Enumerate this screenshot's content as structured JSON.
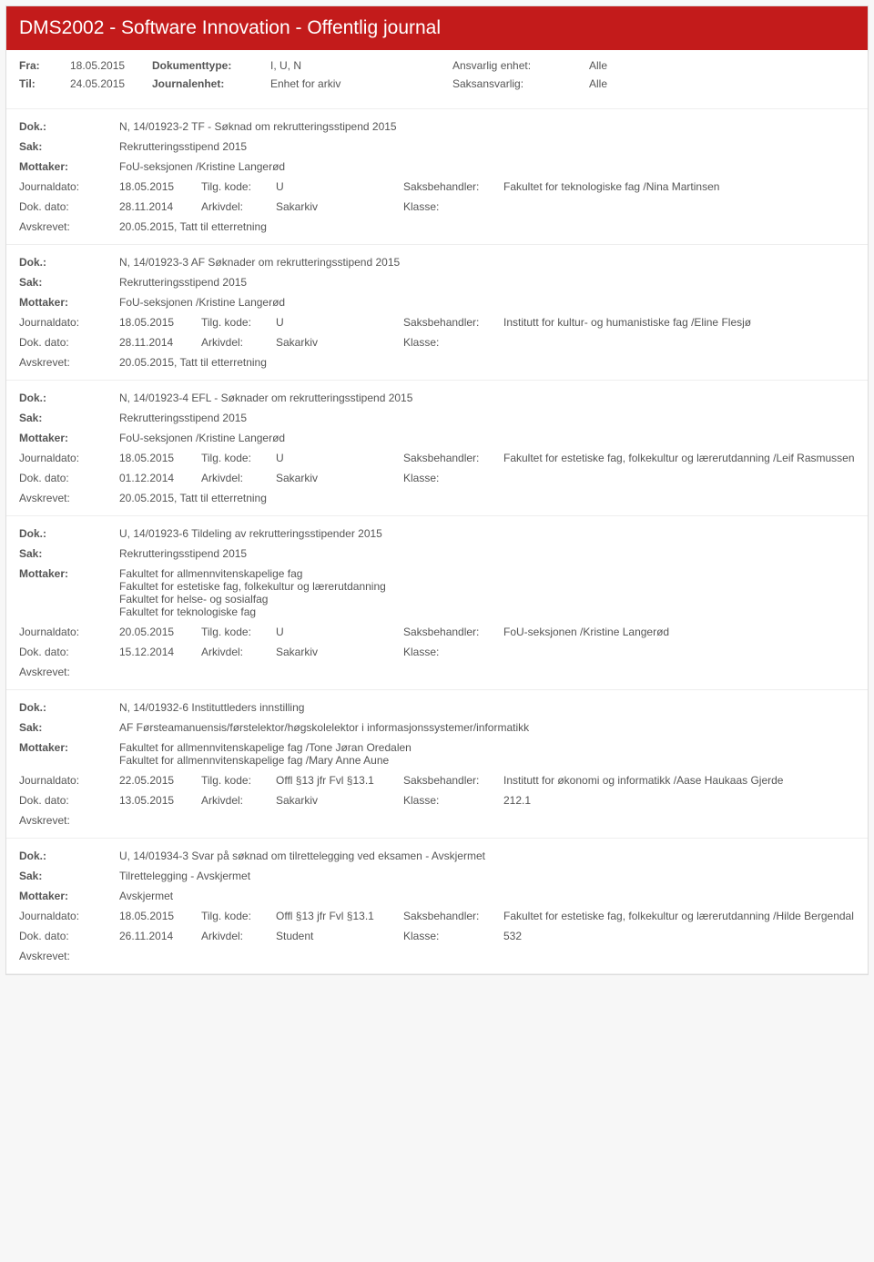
{
  "header": {
    "title": "DMS2002 - Software Innovation - Offentlig journal"
  },
  "filters": {
    "fra_label": "Fra:",
    "fra_value": "18.05.2015",
    "til_label": "Til:",
    "til_value": "24.05.2015",
    "doktype_label": "Dokumenttype:",
    "doktype_value": "I, U, N",
    "journalenhet_label": "Journalenhet:",
    "journalenhet_value": "Enhet for arkiv",
    "ansvarlig_label": "Ansvarlig enhet:",
    "ansvarlig_value": "Alle",
    "saks_label": "Saksansvarlig:",
    "saks_value": "Alle"
  },
  "labels": {
    "dok": "Dok.:",
    "sak": "Sak:",
    "mottaker": "Mottaker:",
    "journaldato": "Journaldato:",
    "tilgkode": "Tilg. kode:",
    "saksbehandler": "Saksbehandler:",
    "dokdato": "Dok. dato:",
    "arkivdel": "Arkivdel:",
    "klasse": "Klasse:",
    "avskrevet": "Avskrevet:"
  },
  "entries": [
    {
      "dok": "N, 14/01923-2 TF - Søknad om rekrutteringsstipend 2015",
      "sak": "Rekrutteringsstipend 2015",
      "mottaker": "FoU-seksjonen /Kristine Langerød",
      "journaldato": "18.05.2015",
      "tilgkode": "U",
      "saksbehandler": "Fakultet for teknologiske fag /Nina Martinsen",
      "dokdato": "28.11.2014",
      "arkivdel": "Sakarkiv",
      "klasse": "",
      "avskrevet": "20.05.2015, Tatt til etterretning"
    },
    {
      "dok": "N, 14/01923-3 AF Søknader om rekrutteringsstipend 2015",
      "sak": "Rekrutteringsstipend 2015",
      "mottaker": "FoU-seksjonen /Kristine Langerød",
      "journaldato": "18.05.2015",
      "tilgkode": "U",
      "saksbehandler": "Institutt for kultur- og humanistiske fag /Eline Flesjø",
      "dokdato": "28.11.2014",
      "arkivdel": "Sakarkiv",
      "klasse": "",
      "avskrevet": "20.05.2015, Tatt til etterretning"
    },
    {
      "dok": "N, 14/01923-4 EFL - Søknader om rekrutteringsstipend 2015",
      "sak": "Rekrutteringsstipend 2015",
      "mottaker": "FoU-seksjonen /Kristine Langerød",
      "journaldato": "18.05.2015",
      "tilgkode": "U",
      "saksbehandler": "Fakultet for estetiske fag, folkekultur og lærerutdanning /Leif Rasmussen",
      "dokdato": "01.12.2014",
      "arkivdel": "Sakarkiv",
      "klasse": "",
      "avskrevet": "20.05.2015, Tatt til etterretning"
    },
    {
      "dok": "U, 14/01923-6 Tildeling av rekrutteringsstipender 2015",
      "sak": "Rekrutteringsstipend 2015",
      "mottaker": "Fakultet for allmennvitenskapelige fag\nFakultet for estetiske fag, folkekultur og lærerutdanning\nFakultet for helse- og sosialfag\nFakultet for teknologiske fag",
      "journaldato": "20.05.2015",
      "tilgkode": "U",
      "saksbehandler": "FoU-seksjonen /Kristine Langerød",
      "dokdato": "15.12.2014",
      "arkivdel": "Sakarkiv",
      "klasse": "",
      "avskrevet": ""
    },
    {
      "dok": "N, 14/01932-6 Instituttleders innstilling",
      "sak": "AF Førsteamanuensis/førstelektor/høgskolelektor i informasjonssystemer/informatikk",
      "mottaker": "Fakultet for allmennvitenskapelige fag /Tone Jøran Oredalen\nFakultet for allmennvitenskapelige fag /Mary Anne Aune",
      "journaldato": "22.05.2015",
      "tilgkode": "Offl §13 jfr Fvl §13.1",
      "saksbehandler": "Institutt for økonomi og informatikk /Aase Haukaas Gjerde",
      "dokdato": "13.05.2015",
      "arkivdel": "Sakarkiv",
      "klasse": "212.1",
      "avskrevet": ""
    },
    {
      "dok": "U, 14/01934-3 Svar på søknad om tilrettelegging ved eksamen - Avskjermet",
      "sak": "Tilrettelegging - Avskjermet",
      "mottaker": "Avskjermet",
      "journaldato": "18.05.2015",
      "tilgkode": "Offl §13 jfr Fvl §13.1",
      "saksbehandler": "Fakultet for estetiske fag, folkekultur og lærerutdanning /Hilde Bergendal",
      "dokdato": "26.11.2014",
      "arkivdel": "Student",
      "klasse": "532",
      "avskrevet": ""
    }
  ],
  "style": {
    "header_bg": "#c31b1b",
    "header_fg": "#ffffff",
    "body_bg": "#f7f7f7",
    "text": "#555555",
    "border": "#dddddd"
  }
}
